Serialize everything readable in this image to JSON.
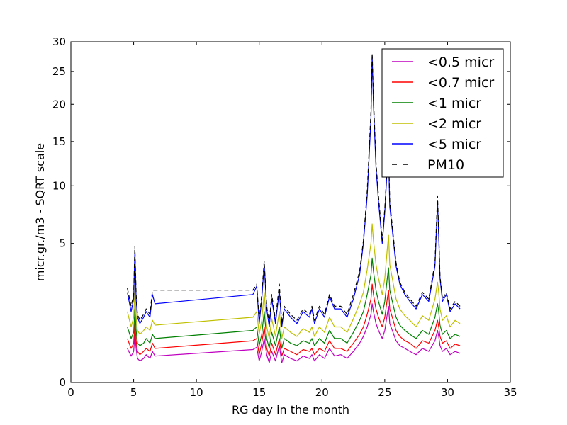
{
  "chart_data": {
    "type": "line",
    "xlabel": "RG day in the month",
    "ylabel": "micr.gr./m3 - SQRT scale",
    "xlim": [
      0,
      35
    ],
    "ylim": [
      0,
      30
    ],
    "y_scale": "sqrt",
    "x_ticks": [
      0,
      5,
      10,
      15,
      20,
      25,
      30,
      35
    ],
    "y_ticks": [
      0,
      5,
      10,
      15,
      20,
      25,
      30
    ],
    "grid": false,
    "legend_position": "top-right",
    "x": [
      4.5,
      4.8,
      5.0,
      5.1,
      5.2,
      5.3,
      5.5,
      5.8,
      6.0,
      6.3,
      6.5,
      6.7,
      14.5,
      14.8,
      15.0,
      15.2,
      15.4,
      15.6,
      15.8,
      16.0,
      16.3,
      16.6,
      16.8,
      17.0,
      17.5,
      18.0,
      18.5,
      19.0,
      19.2,
      19.4,
      19.8,
      20.2,
      20.6,
      21.0,
      21.5,
      22.0,
      22.5,
      23.0,
      23.3,
      23.6,
      23.9,
      24.0,
      24.1,
      24.3,
      24.5,
      24.8,
      25.0,
      25.2,
      25.3,
      25.4,
      25.6,
      25.9,
      26.2,
      26.6,
      27.0,
      27.5,
      28.0,
      28.5,
      29.0,
      29.2,
      29.3,
      29.4,
      29.6,
      29.9,
      30.2,
      30.6,
      31.0
    ],
    "series": [
      {
        "name": "<0.5 micr",
        "color": "#bf00bf",
        "style": "solid",
        "values": [
          0.3,
          0.18,
          0.25,
          0.6,
          0.3,
          0.15,
          0.12,
          0.15,
          0.2,
          0.15,
          0.25,
          0.18,
          0.28,
          0.32,
          0.12,
          0.25,
          0.5,
          0.2,
          0.1,
          0.25,
          0.12,
          0.35,
          0.1,
          0.2,
          0.15,
          0.12,
          0.18,
          0.15,
          0.2,
          0.12,
          0.2,
          0.15,
          0.3,
          0.18,
          0.2,
          0.15,
          0.25,
          0.4,
          0.55,
          0.8,
          1.2,
          1.6,
          1.3,
          0.9,
          0.7,
          0.5,
          0.7,
          1.2,
          1.5,
          0.9,
          0.7,
          0.45,
          0.35,
          0.3,
          0.25,
          0.2,
          0.3,
          0.25,
          0.45,
          0.7,
          0.55,
          0.35,
          0.25,
          0.3,
          0.2,
          0.25,
          0.22
        ]
      },
      {
        "name": "<0.7 micr",
        "color": "#ff0000",
        "style": "solid",
        "values": [
          0.5,
          0.3,
          0.4,
          0.9,
          0.45,
          0.25,
          0.2,
          0.25,
          0.3,
          0.25,
          0.4,
          0.3,
          0.45,
          0.5,
          0.2,
          0.4,
          0.8,
          0.3,
          0.18,
          0.4,
          0.2,
          0.5,
          0.18,
          0.3,
          0.25,
          0.2,
          0.28,
          0.25,
          0.3,
          0.2,
          0.3,
          0.25,
          0.45,
          0.3,
          0.3,
          0.25,
          0.4,
          0.6,
          0.8,
          1.2,
          1.8,
          2.5,
          2.0,
          1.4,
          1.1,
          0.8,
          1.1,
          1.8,
          2.2,
          1.4,
          1.1,
          0.7,
          0.55,
          0.45,
          0.4,
          0.3,
          0.45,
          0.4,
          0.7,
          1.0,
          0.8,
          0.55,
          0.4,
          0.45,
          0.3,
          0.38,
          0.35
        ]
      },
      {
        "name": "<1 micr",
        "color": "#008000",
        "style": "solid",
        "values": [
          0.8,
          0.5,
          0.65,
          1.4,
          0.7,
          0.4,
          0.35,
          0.4,
          0.5,
          0.4,
          0.6,
          0.5,
          0.7,
          0.8,
          0.35,
          0.6,
          1.3,
          0.5,
          0.3,
          0.65,
          0.35,
          0.8,
          0.3,
          0.5,
          0.4,
          0.35,
          0.45,
          0.4,
          0.5,
          0.35,
          0.5,
          0.4,
          0.7,
          0.5,
          0.5,
          0.4,
          0.65,
          1.0,
          1.3,
          2.0,
          3.0,
          4.0,
          3.2,
          2.2,
          1.7,
          1.2,
          1.7,
          2.8,
          3.4,
          2.2,
          1.7,
          1.1,
          0.85,
          0.7,
          0.6,
          0.5,
          0.7,
          0.6,
          1.1,
          1.6,
          1.3,
          0.85,
          0.6,
          0.7,
          0.5,
          0.6,
          0.55
        ]
      },
      {
        "name": "<2 micr",
        "color": "#bfbf00",
        "style": "solid",
        "values": [
          1.3,
          0.8,
          1.1,
          2.2,
          1.1,
          0.7,
          0.6,
          0.7,
          0.8,
          0.7,
          1.0,
          0.85,
          1.1,
          1.3,
          0.6,
          1.0,
          2.1,
          0.8,
          0.5,
          1.05,
          0.55,
          1.3,
          0.5,
          0.8,
          0.65,
          0.55,
          0.75,
          0.65,
          0.8,
          0.55,
          0.8,
          0.65,
          1.1,
          0.8,
          0.8,
          0.65,
          1.05,
          1.6,
          2.1,
          3.3,
          5.0,
          6.5,
          5.2,
          3.6,
          2.8,
          2.0,
          2.8,
          4.6,
          5.6,
          3.6,
          2.8,
          1.8,
          1.4,
          1.15,
          1.0,
          0.8,
          1.15,
          1.0,
          1.8,
          2.6,
          2.1,
          1.4,
          1.0,
          1.15,
          0.8,
          1.0,
          0.9
        ]
      },
      {
        "name": "<5 micr",
        "color": "#0000ff",
        "style": "solid",
        "values": [
          2.1,
          1.3,
          1.8,
          4.5,
          1.8,
          1.1,
          0.9,
          1.1,
          1.3,
          1.1,
          2.0,
          1.6,
          2.0,
          2.4,
          0.9,
          1.8,
          3.6,
          1.4,
          0.8,
          1.8,
          0.9,
          2.2,
          0.8,
          1.4,
          1.1,
          0.9,
          1.3,
          1.1,
          1.4,
          0.9,
          1.4,
          1.1,
          1.9,
          1.4,
          1.4,
          1.1,
          1.8,
          3.0,
          5.0,
          9.0,
          18.0,
          27.5,
          20.0,
          12.0,
          8.5,
          5.0,
          7.5,
          12.0,
          13.5,
          8.0,
          6.0,
          3.5,
          2.5,
          2.0,
          1.7,
          1.4,
          2.0,
          1.7,
          3.5,
          8.5,
          5.5,
          2.8,
          1.7,
          2.0,
          1.3,
          1.6,
          1.4
        ]
      },
      {
        "name": "PM10",
        "color": "#000000",
        "style": "dashed",
        "values": [
          2.3,
          1.5,
          2.0,
          4.8,
          2.0,
          1.2,
          1.0,
          1.2,
          1.4,
          1.2,
          2.2,
          2.2,
          2.2,
          2.5,
          1.0,
          2.0,
          3.8,
          1.5,
          0.9,
          2.0,
          1.0,
          2.5,
          0.9,
          1.5,
          1.2,
          1.0,
          1.4,
          1.2,
          1.5,
          1.0,
          1.5,
          1.2,
          2.0,
          1.5,
          1.5,
          1.2,
          2.0,
          3.2,
          5.2,
          9.5,
          19.0,
          28.0,
          21.0,
          12.5,
          9.0,
          5.2,
          7.8,
          12.5,
          14.0,
          8.5,
          6.3,
          3.7,
          2.6,
          2.1,
          1.8,
          1.5,
          2.1,
          1.8,
          3.7,
          9.0,
          5.8,
          2.9,
          1.8,
          2.1,
          1.4,
          1.7,
          1.5
        ]
      }
    ]
  }
}
